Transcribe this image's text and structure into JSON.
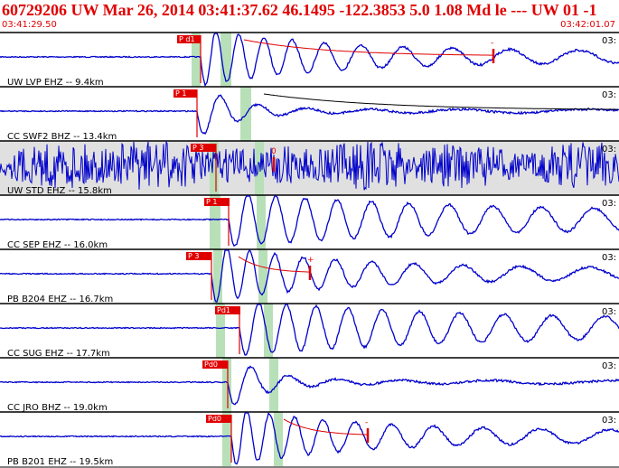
{
  "header": {
    "title": "60729206 UW Mar 26, 2014 03:41:37.62    46.1495 -122.3853  5.0 1.08 Md le --- UW 01  -1",
    "start_time": "03:41:29.50",
    "end_time": "03:42:01.07"
  },
  "colors": {
    "trace": "#0000cc",
    "selected_bg": "#e0e0e0",
    "pick": "#e00000",
    "window": "#b8e0b8",
    "decay_curve": "#000000"
  },
  "channels": [
    {
      "label": "UW LVP EHZ -- 9.4km",
      "pick": "P d1",
      "right_tag": "03:",
      "marker": "-",
      "amp_mode": "strong"
    },
    {
      "label": "CC SWF2 BHZ -- 13.4km",
      "pick": "P 1",
      "right_tag": "03:",
      "marker": "",
      "amp_mode": "single"
    },
    {
      "label": "UW STD EHZ -- 15.8km",
      "pick": "P 3",
      "right_tag": "03:",
      "marker": "0",
      "amp_mode": "noisy"
    },
    {
      "label": "CC SEP EHZ -- 16.0km",
      "pick": "P 1",
      "right_tag": "03:",
      "marker": "",
      "amp_mode": "ringing"
    },
    {
      "label": "PB B204 EHZ -- 16.7km",
      "pick": "P 3",
      "right_tag": "03:",
      "marker": "+",
      "amp_mode": "strong"
    },
    {
      "label": "CC SUG EHZ -- 17.7km",
      "pick": "Pd1",
      "right_tag": "03:",
      "marker": "",
      "amp_mode": "ringing"
    },
    {
      "label": "CC JRO BHZ -- 19.0km",
      "pick": "Pd0",
      "right_tag": "03:",
      "marker": "",
      "amp_mode": "single"
    },
    {
      "label": "PB B201 EHZ -- 19.5km",
      "pick": "Pd0",
      "right_tag": "03:",
      "marker": "-",
      "amp_mode": "strong"
    }
  ]
}
